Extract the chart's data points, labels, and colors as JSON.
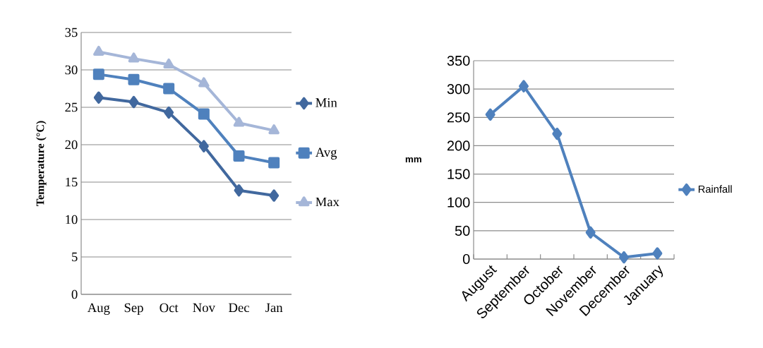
{
  "chart_data": [
    {
      "type": "line",
      "ylabel": "Temperature (°C)",
      "categories": [
        "Aug",
        "Sep",
        "Oct",
        "Nov",
        "Dec",
        "Jan"
      ],
      "ylim": [
        0,
        35
      ],
      "yticks": [
        0,
        5,
        10,
        15,
        20,
        25,
        30,
        35
      ],
      "grid": "y",
      "legend": "right",
      "line_style": "solid",
      "series": [
        {
          "name": "Min",
          "color": "#41689e",
          "marker": "diamond",
          "values": [
            26.3,
            25.7,
            24.3,
            19.8,
            13.9,
            13.2
          ]
        },
        {
          "name": "Avg",
          "color": "#4f81bd",
          "marker": "square",
          "values": [
            29.4,
            28.7,
            27.5,
            24.1,
            18.5,
            17.6
          ]
        },
        {
          "name": "Max",
          "color": "#a5b6d8",
          "marker": "triangle",
          "values": [
            32.4,
            31.5,
            30.7,
            28.2,
            22.9,
            21.9
          ]
        }
      ]
    },
    {
      "type": "line",
      "ylabel": "mm",
      "categories": [
        "August",
        "September",
        "October",
        "November",
        "December",
        "January"
      ],
      "ylim": [
        0,
        350
      ],
      "yticks": [
        0,
        50,
        100,
        150,
        200,
        250,
        300,
        350
      ],
      "grid": "y",
      "legend": "right",
      "line_style": "solid",
      "series": [
        {
          "name": "Rainfall",
          "color": "#4f81bd",
          "marker": "diamond",
          "values": [
            255,
            305,
            221,
            47,
            3,
            10
          ]
        }
      ]
    }
  ]
}
